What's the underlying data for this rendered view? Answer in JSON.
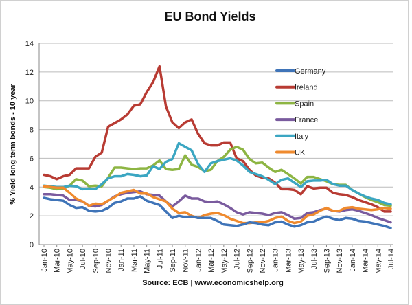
{
  "chart_data": {
    "type": "line",
    "title": "EU Bond Yields",
    "xlabel": "",
    "ylabel": "% Yield long term bonds - 10 year",
    "source": "Source: ECB | www.economicshelp.org",
    "ylim": [
      0,
      14
    ],
    "yticks": [
      0,
      2,
      4,
      6,
      8,
      10,
      12,
      14
    ],
    "grid": true,
    "legend_position": "right",
    "x_tick_labels": [
      "Jan-10",
      "Mar-10",
      "May-10",
      "Jul-10",
      "Sep-10",
      "Nov-10",
      "Jan-11",
      "Mar-11",
      "May-11",
      "Jul-11",
      "Sep-11",
      "Nov-11",
      "Jan-12",
      "Mar-12",
      "May-12",
      "Jul-12",
      "Sep-12",
      "Nov-12",
      "Jan-13",
      "Mar-13",
      "May-13",
      "Jul-13",
      "Sep-13",
      "Nov-13",
      "Jan-14",
      "Mar-14",
      "May-14",
      "Jul-14"
    ],
    "n_months": 55,
    "series": [
      {
        "name": "Germany",
        "color": "#3f74b8",
        "values": [
          3.25,
          3.15,
          3.1,
          3.05,
          2.75,
          2.55,
          2.6,
          2.35,
          2.3,
          2.35,
          2.55,
          2.9,
          3.0,
          3.2,
          3.2,
          3.35,
          3.05,
          2.9,
          2.75,
          2.3,
          1.85,
          2.0,
          1.9,
          1.95,
          1.85,
          1.85,
          1.85,
          1.65,
          1.4,
          1.35,
          1.3,
          1.4,
          1.55,
          1.5,
          1.4,
          1.35,
          1.55,
          1.6,
          1.4,
          1.25,
          1.35,
          1.55,
          1.6,
          1.8,
          1.95,
          1.8,
          1.7,
          1.85,
          1.8,
          1.65,
          1.6,
          1.5,
          1.4,
          1.3,
          1.15
        ]
      },
      {
        "name": "Ireland",
        "color": "#b83b33",
        "values": [
          4.85,
          4.75,
          4.55,
          4.75,
          4.85,
          5.3,
          5.3,
          5.3,
          6.1,
          6.4,
          8.2,
          8.45,
          8.7,
          9.05,
          9.65,
          9.75,
          10.6,
          11.3,
          12.4,
          9.6,
          8.5,
          8.1,
          8.5,
          8.7,
          7.7,
          7.05,
          6.9,
          6.9,
          7.1,
          7.1,
          6.0,
          5.8,
          5.2,
          4.8,
          4.65,
          4.6,
          4.3,
          3.85,
          3.85,
          3.8,
          3.5,
          4.05,
          3.9,
          3.95,
          3.95,
          3.6,
          3.5,
          3.45,
          3.3,
          3.1,
          2.95,
          2.8,
          2.6,
          2.3,
          2.3
        ]
      },
      {
        "name": "Spain",
        "color": "#8db543",
        "values": [
          4.0,
          3.95,
          3.85,
          3.9,
          4.1,
          4.55,
          4.45,
          4.05,
          4.1,
          4.05,
          4.65,
          5.35,
          5.35,
          5.3,
          5.25,
          5.3,
          5.3,
          5.5,
          5.85,
          5.25,
          5.2,
          5.25,
          6.2,
          5.55,
          5.4,
          5.1,
          5.2,
          5.8,
          6.1,
          6.6,
          6.8,
          6.6,
          5.95,
          5.65,
          5.7,
          5.35,
          5.05,
          5.2,
          4.9,
          4.6,
          4.25,
          4.7,
          4.7,
          4.55,
          4.4,
          4.2,
          4.15,
          4.15,
          3.8,
          3.55,
          3.3,
          3.1,
          2.95,
          2.75,
          2.7
        ]
      },
      {
        "name": "France",
        "color": "#7a5b9e",
        "values": [
          3.5,
          3.5,
          3.45,
          3.4,
          3.1,
          3.1,
          3.0,
          2.7,
          2.65,
          2.75,
          3.05,
          3.35,
          3.5,
          3.6,
          3.65,
          3.7,
          3.5,
          3.45,
          3.4,
          3.0,
          2.65,
          3.0,
          3.4,
          3.2,
          3.2,
          3.0,
          2.95,
          3.0,
          2.8,
          2.55,
          2.25,
          2.1,
          2.25,
          2.2,
          2.15,
          2.05,
          2.2,
          2.25,
          2.05,
          1.8,
          1.85,
          2.2,
          2.25,
          2.4,
          2.5,
          2.35,
          2.3,
          2.4,
          2.45,
          2.35,
          2.2,
          2.05,
          1.85,
          1.7,
          1.55
        ]
      },
      {
        "name": "Italy",
        "color": "#3ba6c2",
        "values": [
          4.1,
          4.05,
          4.0,
          4.0,
          4.1,
          4.05,
          3.85,
          3.9,
          3.85,
          4.2,
          4.6,
          4.75,
          4.75,
          4.9,
          4.85,
          4.75,
          4.8,
          5.45,
          5.25,
          5.75,
          5.95,
          7.05,
          6.8,
          6.55,
          5.6,
          5.05,
          5.65,
          5.8,
          5.9,
          6.0,
          5.85,
          5.5,
          5.05,
          4.9,
          4.75,
          4.5,
          4.2,
          4.5,
          4.6,
          4.3,
          4.0,
          4.4,
          4.45,
          4.45,
          4.5,
          4.2,
          4.1,
          4.1,
          3.8,
          3.55,
          3.35,
          3.2,
          3.1,
          2.9,
          2.8
        ]
      },
      {
        "name": "UK",
        "color": "#ef8a2e",
        "values": [
          4.05,
          4.0,
          3.95,
          3.95,
          3.6,
          3.2,
          3.0,
          2.7,
          2.85,
          2.8,
          3.05,
          3.3,
          3.6,
          3.7,
          3.8,
          3.55,
          3.55,
          3.3,
          3.15,
          3.0,
          2.5,
          2.2,
          2.25,
          2.0,
          1.85,
          2.05,
          2.15,
          2.2,
          2.05,
          1.8,
          1.65,
          1.5,
          1.5,
          1.55,
          1.55,
          1.65,
          1.85,
          1.95,
          1.65,
          1.5,
          1.6,
          2.0,
          2.1,
          2.35,
          2.55,
          2.35,
          2.35,
          2.55,
          2.6,
          2.5,
          2.45,
          2.4,
          2.45,
          2.55,
          2.5
        ]
      }
    ]
  }
}
